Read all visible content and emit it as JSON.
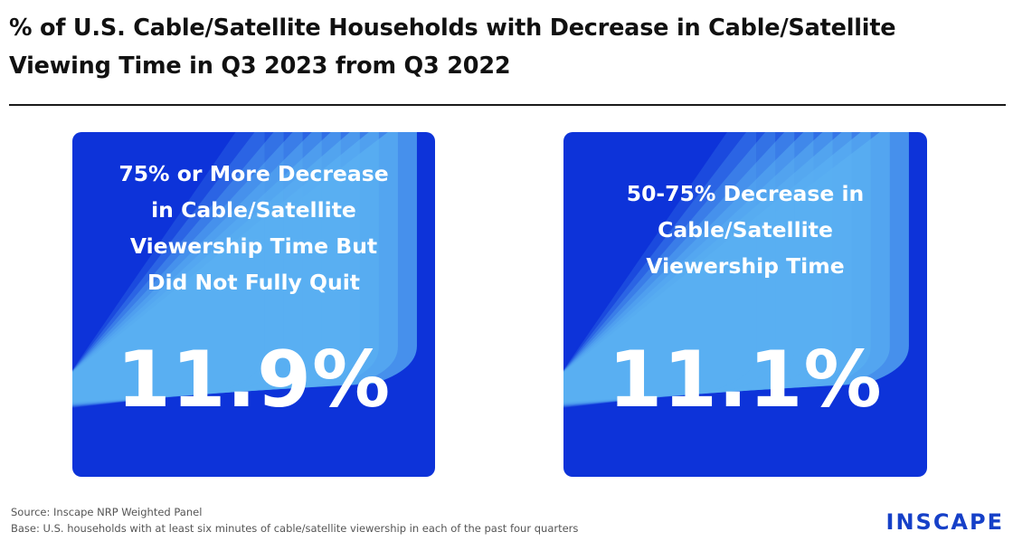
{
  "title": {
    "line1": "% of U.S. Cable/Satellite Households with Decrease in Cable/Satellite",
    "line2": "Viewing Time in Q3 2023 from Q3 2022"
  },
  "colors": {
    "card_blue": "#0d33d9",
    "light_blue": "#5ab0f2",
    "logo": "#1640c8"
  },
  "chart_data": {
    "type": "table",
    "title": "% of U.S. Cable/Satellite Households with Decrease in Cable/Satellite Viewing Time in Q3 2023 from Q3 2022",
    "categories": [
      "75% or More Decrease in Cable/Satellite Viewership Time But Did Not Fully Quit",
      "50-75% Decrease in Cable/Satellite Viewership Time"
    ],
    "values": [
      11.9,
      11.1
    ],
    "unit": "%"
  },
  "cards": [
    {
      "label_lines": [
        "75% or More Decrease",
        "in Cable/Satellite",
        "Viewership Time But",
        "Did Not Fully Quit"
      ],
      "value": "11.9%"
    },
    {
      "label_lines": [
        "50-75% Decrease in",
        "Cable/Satellite",
        "Viewership Time"
      ],
      "value": "11.1%"
    }
  ],
  "footer": {
    "source": "Source: Inscape NRP Weighted Panel",
    "base": "Base: U.S. households with at least six minutes of cable/satellite viewership in each of the past four quarters",
    "logo": "INSCAPE"
  }
}
